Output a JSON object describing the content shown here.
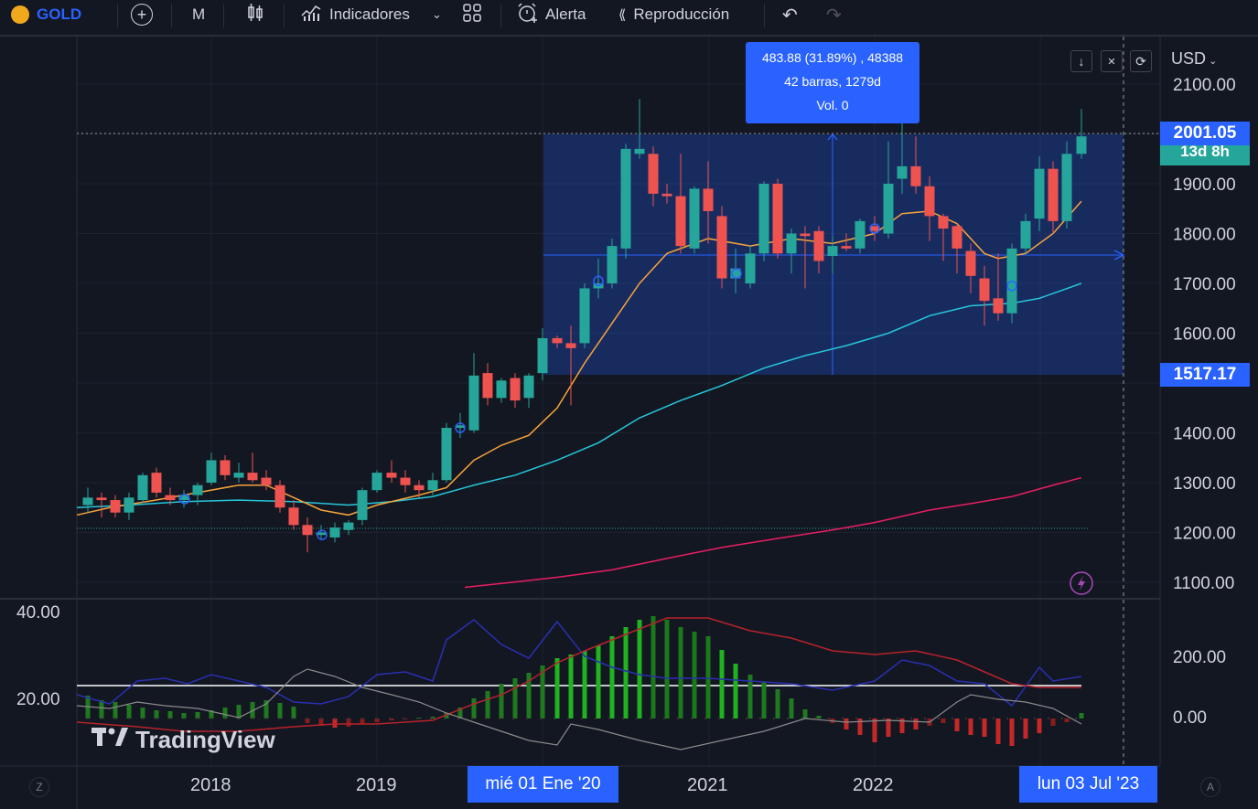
{
  "toolbar": {
    "symbol": "GOLD",
    "interval": "M",
    "indicators_label": "Indicadores",
    "alert_label": "Alerta",
    "replay_label": "Reproducción"
  },
  "tooltip": {
    "line1": "483.88 (31.89%) , 48388",
    "line2": "42 barras, 1279d",
    "line3": "Vol. 0"
  },
  "price_axis": {
    "currency": "USD",
    "labels": [
      "2100.00",
      "1900.00",
      "1800.00",
      "1700.00",
      "1600.00",
      "1400.00",
      "1300.00",
      "1200.00",
      "1100.00"
    ],
    "current_price": "2001.05",
    "countdown": "13d 8h",
    "range_low": "1517.17"
  },
  "indicator_axis": {
    "left_labels": [
      "40.00",
      "20.00"
    ],
    "right_labels": [
      "200.00",
      "0.00"
    ]
  },
  "time_axis": {
    "labels": [
      "2018",
      "2019",
      "2021",
      "2022"
    ],
    "range_start": "mié 01 Ene '20",
    "range_end": "lun 03 Jul '23"
  },
  "watermark": "TradingView",
  "corner_left": "Z",
  "corner_right": "A",
  "colors": {
    "bg": "#131722",
    "up": "#26a69a",
    "down": "#ef5350",
    "accent": "#2962ff"
  }
}
